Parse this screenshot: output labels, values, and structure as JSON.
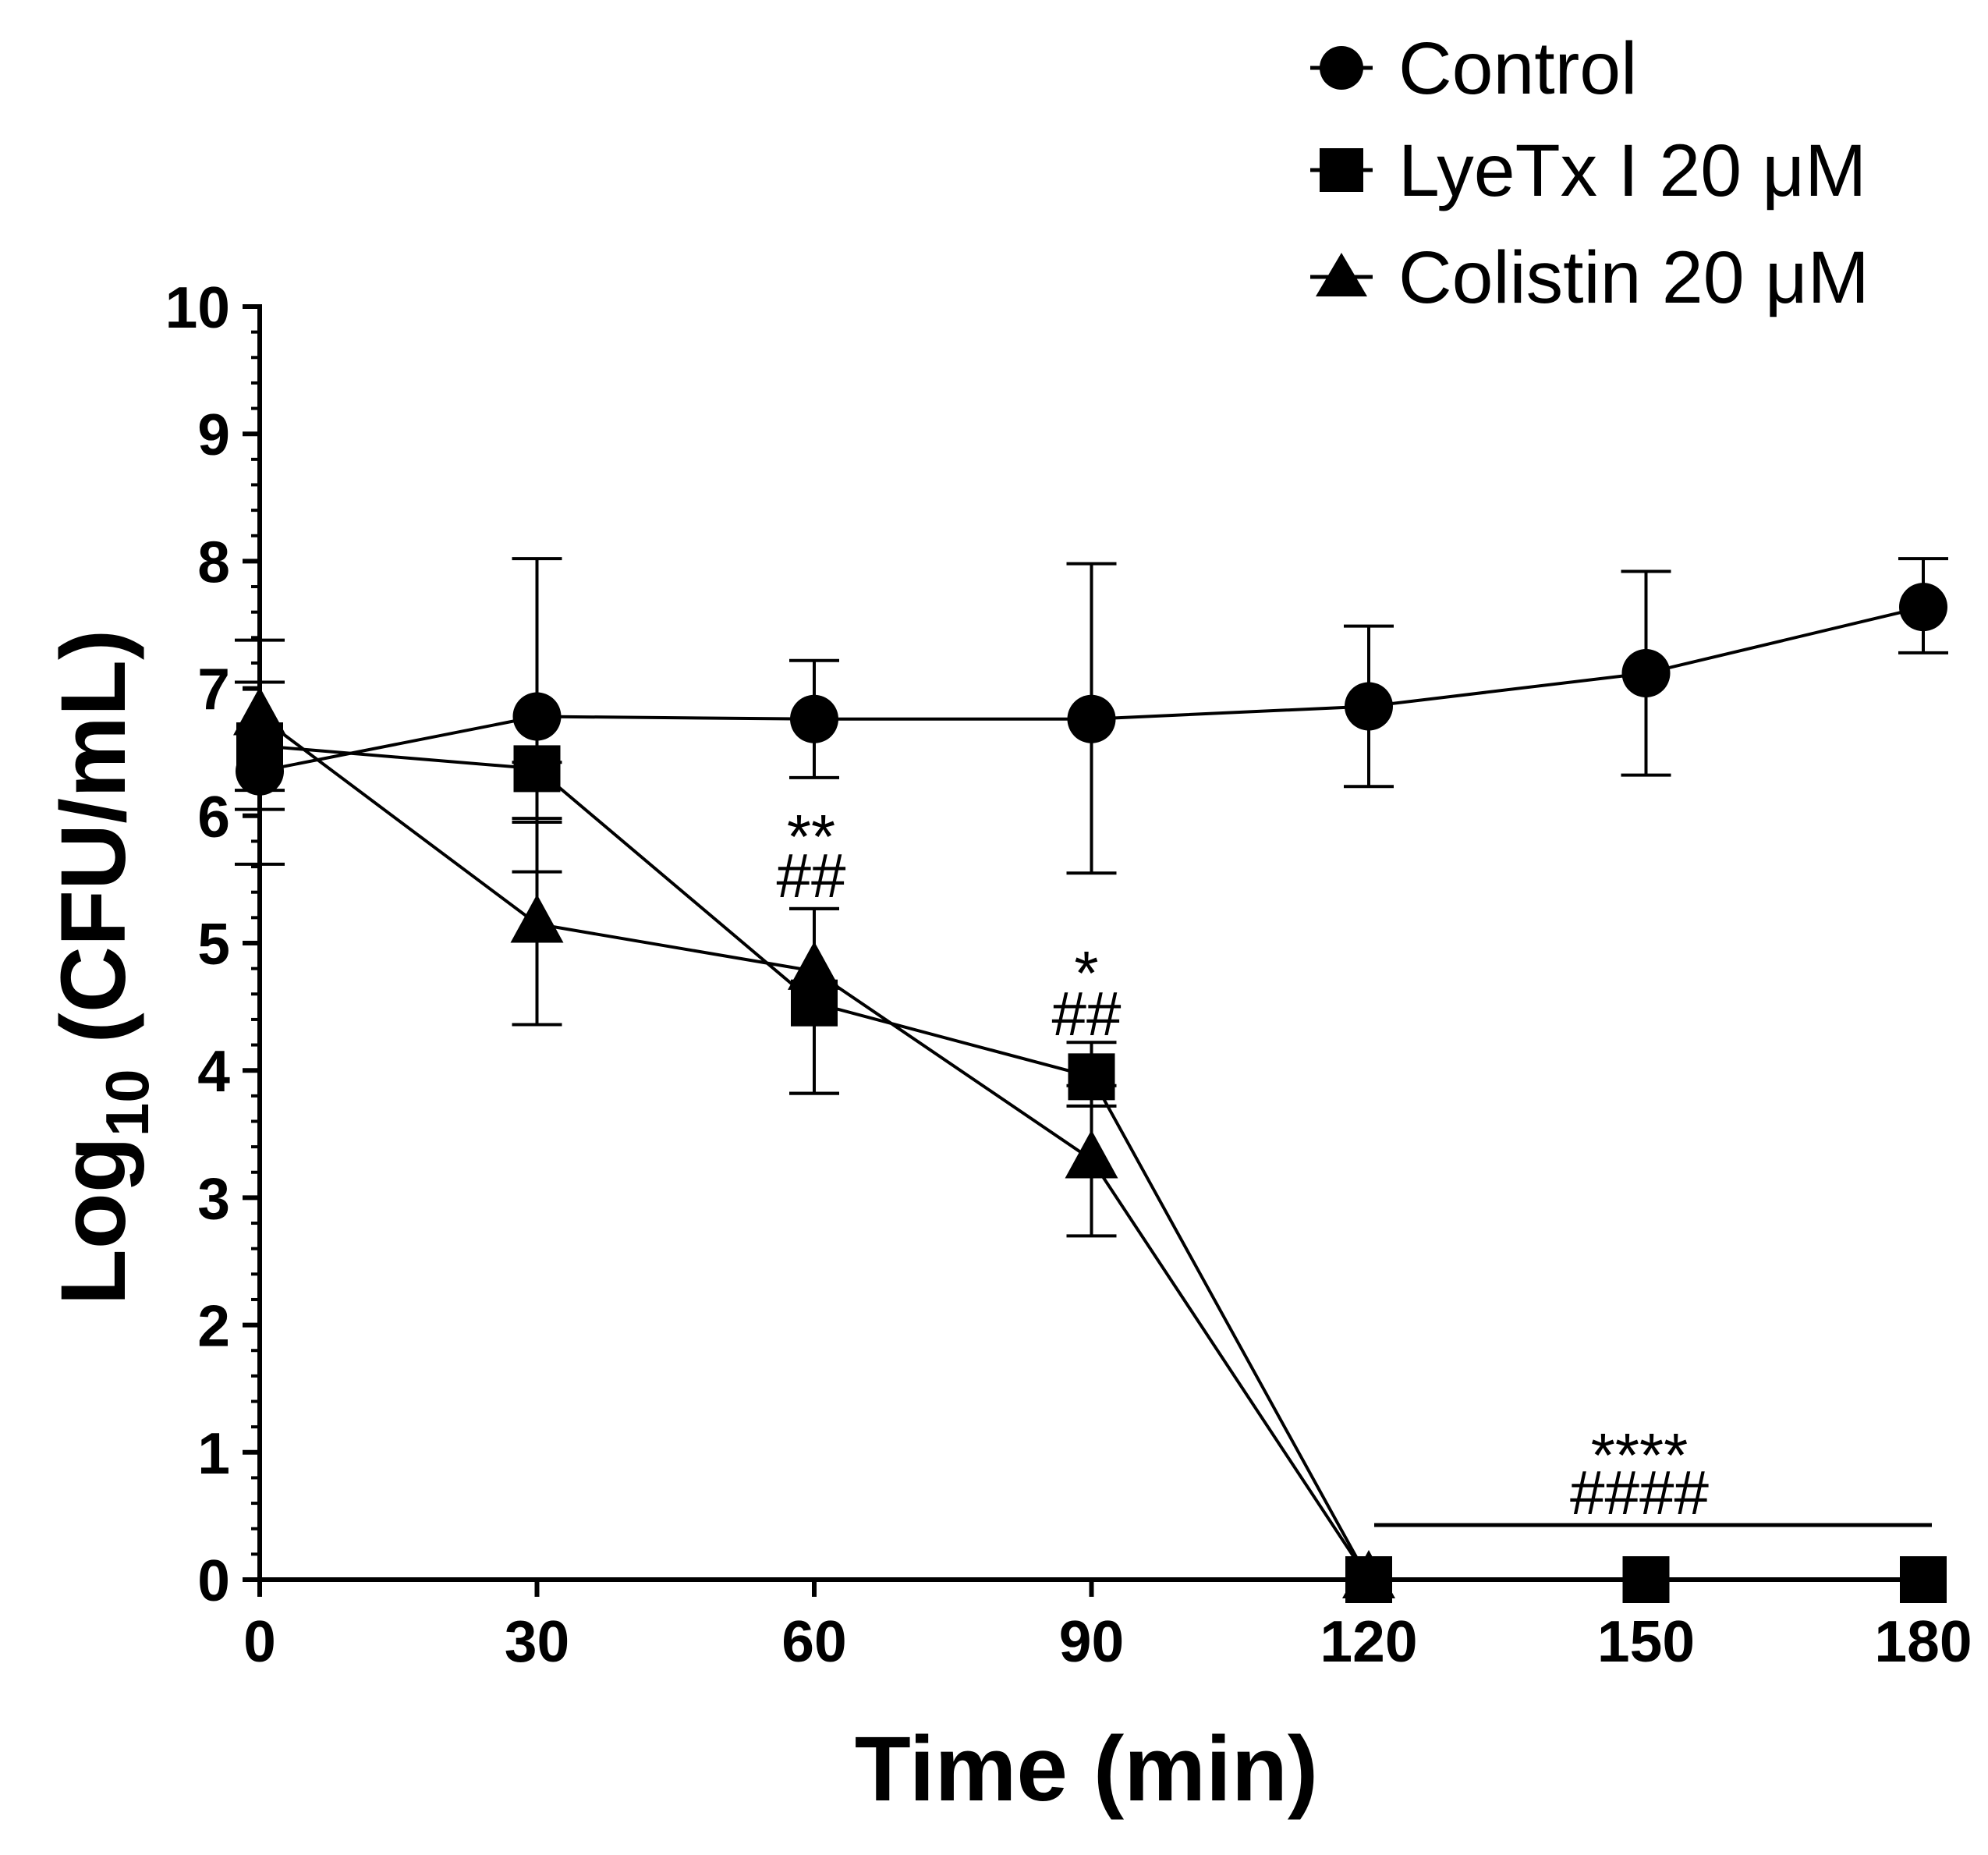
{
  "chart_data": {
    "type": "line",
    "title": "",
    "xlabel": "Time (min)",
    "ylabel": {
      "main": "Log",
      "sub": "10",
      "rest": " (CFU/mL)"
    },
    "x": [
      0,
      30,
      60,
      90,
      120,
      150,
      180
    ],
    "xlim": [
      0,
      180
    ],
    "ylim": [
      0,
      10
    ],
    "xticks": [
      "0",
      "30",
      "60",
      "90",
      "120",
      "150",
      "180"
    ],
    "yticks": [
      "0",
      "1",
      "2",
      "3",
      "4",
      "5",
      "6",
      "7",
      "8",
      "9",
      "10"
    ],
    "grid": false,
    "legend_position": "top-right",
    "series": [
      {
        "name": "Control",
        "marker": "circle",
        "values": [
          6.35,
          6.78,
          6.76,
          6.76,
          6.86,
          7.12,
          7.64
        ],
        "err_low": [
          5.62,
          5.56,
          6.3,
          5.55,
          6.23,
          6.32,
          7.28
        ],
        "err_high": [
          7.05,
          8.02,
          7.22,
          7.98,
          7.49,
          7.92,
          8.02
        ]
      },
      {
        "name": "LyeTx I 20 μM",
        "marker": "square",
        "values": [
          6.55,
          6.37,
          4.53,
          3.95,
          0,
          0,
          0
        ],
        "err_low": [
          6.05,
          5.98,
          3.82,
          3.72,
          null,
          null,
          null
        ],
        "err_high": [
          7.05,
          6.42,
          5.27,
          4.22,
          null,
          null,
          null
        ]
      },
      {
        "name": "Colistin 20 μM",
        "marker": "triangle",
        "values": [
          6.78,
          5.15,
          4.78,
          3.3,
          0,
          null,
          null
        ],
        "err_low": [
          6.2,
          4.36,
          3.82,
          2.7,
          null,
          null,
          null
        ],
        "err_high": [
          7.38,
          5.95,
          5.27,
          3.88,
          null,
          null,
          null
        ]
      }
    ],
    "annotations": {
      "t60_star": "**",
      "t60_hash": "##",
      "t90_star": "*",
      "t90_hash": "##",
      "late_star": "****",
      "late_hash": "####"
    }
  }
}
